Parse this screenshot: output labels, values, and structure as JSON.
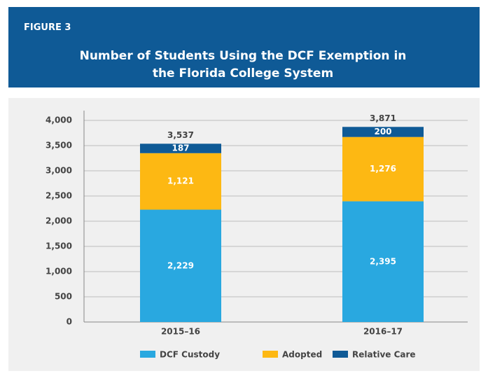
{
  "figure_label": "FIGURE 3",
  "chart_data": {
    "type": "stacked_bar",
    "title": "Number of Students Using the DCF Exemption in the Florida College System",
    "categories": [
      "2015–16",
      "2016–17"
    ],
    "series": [
      {
        "name": "DCF Custody",
        "color": "#29a8e0",
        "values": [
          2229,
          2395
        ],
        "value_labels": [
          "2,229",
          "2,395"
        ]
      },
      {
        "name": "Adopted",
        "color": "#fdb813",
        "values": [
          1121,
          1276
        ],
        "value_labels": [
          "1,121",
          "1,276"
        ]
      },
      {
        "name": "Relative Care",
        "color": "#0f5a96",
        "values": [
          187,
          200
        ],
        "value_labels": [
          "187",
          "200"
        ]
      }
    ],
    "totals": {
      "values": [
        3537,
        3871
      ],
      "value_labels": [
        "3,537",
        "3,871"
      ]
    },
    "ylim": [
      0,
      4000
    ],
    "yticks": [
      0,
      500,
      {
        "value": 1000,
        "label": "1,000"
      },
      {
        "value": 1500,
        "label": "1,500"
      },
      {
        "value": 2000,
        "label": "2,000"
      },
      {
        "value": 2500,
        "label": "2,500"
      },
      {
        "value": 3000,
        "label": "3,000"
      },
      {
        "value": 3500,
        "label": "3,500"
      },
      {
        "value": 4000,
        "label": "4,000"
      }
    ],
    "grid": true,
    "legend": "bottom"
  }
}
